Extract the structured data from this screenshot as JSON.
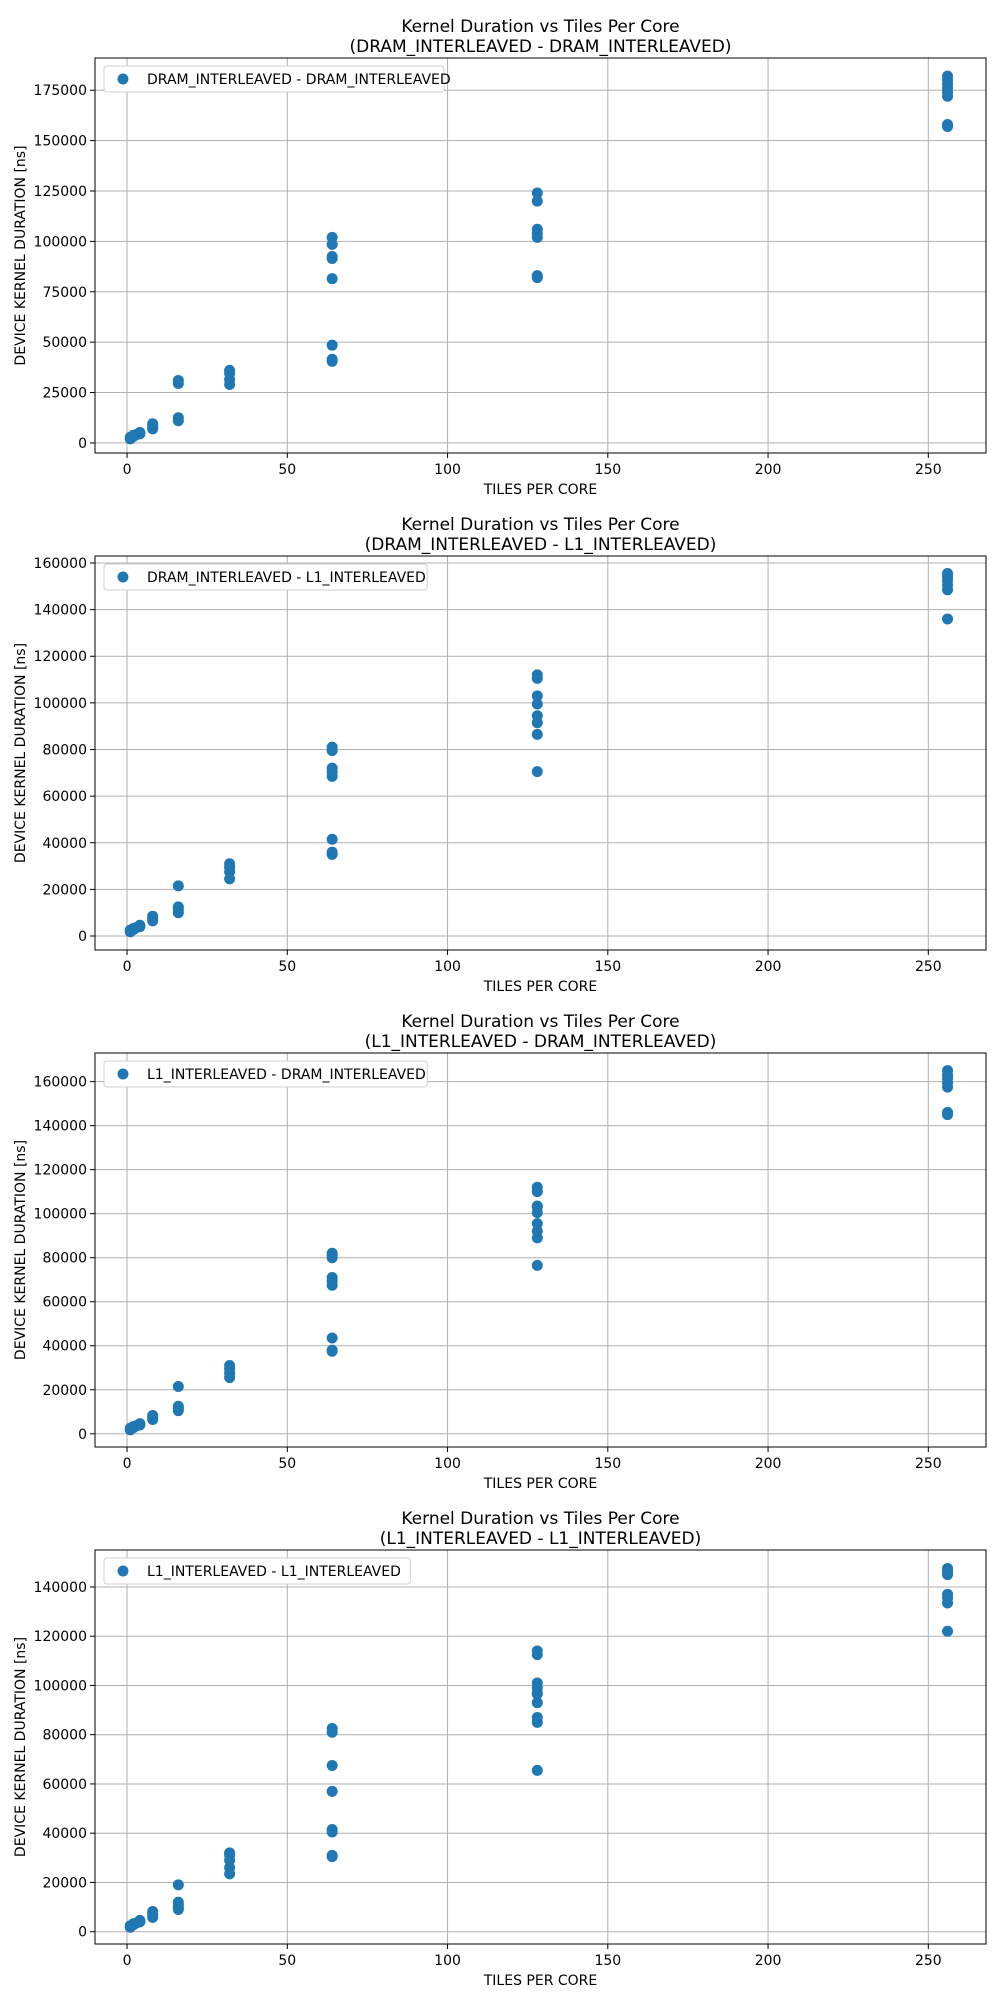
{
  "colors": {
    "series": "#1f77b4",
    "grid": "#b0b0b0"
  },
  "chart_data": [
    {
      "type": "scatter",
      "title": "Kernel Duration vs Tiles Per Core",
      "subtitle": "(DRAM_INTERLEAVED - DRAM_INTERLEAVED)",
      "xlabel": "TILES PER CORE",
      "ylabel": "DEVICE KERNEL DURATION [ns]",
      "xlim": [
        -10,
        268
      ],
      "ylim": [
        -5000,
        191000
      ],
      "xticks": [
        0,
        50,
        100,
        150,
        200,
        250
      ],
      "yticks": [
        0,
        25000,
        50000,
        75000,
        100000,
        125000,
        150000,
        175000
      ],
      "grid": true,
      "legend_position": "top-left",
      "series": [
        {
          "name": "DRAM_INTERLEAVED - DRAM_INTERLEAVED",
          "x": [
            1,
            1,
            2,
            2,
            3,
            4,
            4,
            8,
            8,
            8,
            16,
            16,
            16,
            16,
            32,
            32,
            32,
            32,
            64,
            64,
            64,
            64,
            64,
            64,
            64,
            64,
            128,
            128,
            128,
            128,
            128,
            128,
            128,
            256,
            256,
            256,
            256,
            256,
            256,
            256,
            256
          ],
          "y": [
            2000,
            2800,
            3200,
            3800,
            4200,
            4500,
            5200,
            7000,
            8500,
            9500,
            11000,
            12500,
            29500,
            31000,
            29000,
            31500,
            34500,
            36000,
            40500,
            41500,
            48500,
            81500,
            91500,
            92500,
            98500,
            102000,
            82000,
            83000,
            102000,
            104000,
            106000,
            120000,
            124000,
            157000,
            158000,
            172000,
            174000,
            176000,
            178000,
            180000,
            182000
          ]
        }
      ]
    },
    {
      "type": "scatter",
      "title": "Kernel Duration vs Tiles Per Core",
      "subtitle": "(DRAM_INTERLEAVED - L1_INTERLEAVED)",
      "xlabel": "TILES PER CORE",
      "ylabel": "DEVICE KERNEL DURATION [ns]",
      "xlim": [
        -10,
        268
      ],
      "ylim": [
        -6000,
        163000
      ],
      "xticks": [
        0,
        50,
        100,
        150,
        200,
        250
      ],
      "yticks": [
        0,
        20000,
        40000,
        60000,
        80000,
        100000,
        120000,
        140000,
        160000
      ],
      "grid": true,
      "legend_position": "top-left",
      "series": [
        {
          "name": "DRAM_INTERLEAVED - L1_INTERLEAVED",
          "x": [
            1,
            1,
            2,
            2,
            3,
            4,
            4,
            8,
            8,
            8,
            16,
            16,
            16,
            16,
            32,
            32,
            32,
            32,
            64,
            64,
            64,
            64,
            64,
            64,
            64,
            64,
            128,
            128,
            128,
            128,
            128,
            128,
            128,
            128,
            256,
            256,
            256,
            256,
            256,
            256
          ],
          "y": [
            1800,
            2500,
            2800,
            3300,
            3700,
            4000,
            4600,
            6500,
            7500,
            8500,
            10000,
            11500,
            12500,
            21500,
            24500,
            27500,
            29500,
            31000,
            35000,
            36000,
            41500,
            68500,
            70500,
            72000,
            79500,
            81000,
            70500,
            86500,
            91500,
            94500,
            99500,
            103000,
            110500,
            112000,
            136000,
            148500,
            150500,
            152500,
            154000,
            155500
          ]
        }
      ]
    },
    {
      "type": "scatter",
      "title": "Kernel Duration vs Tiles Per Core",
      "subtitle": "(L1_INTERLEAVED - DRAM_INTERLEAVED)",
      "xlabel": "TILES PER CORE",
      "ylabel": "DEVICE KERNEL DURATION [ns]",
      "xlim": [
        -10,
        268
      ],
      "ylim": [
        -6000,
        173000
      ],
      "xticks": [
        0,
        50,
        100,
        150,
        200,
        250
      ],
      "yticks": [
        0,
        20000,
        40000,
        60000,
        80000,
        100000,
        120000,
        140000,
        160000
      ],
      "grid": true,
      "legend_position": "top-left",
      "series": [
        {
          "name": "L1_INTERLEAVED - DRAM_INTERLEAVED",
          "x": [
            1,
            1,
            2,
            2,
            3,
            4,
            4,
            8,
            8,
            8,
            16,
            16,
            16,
            16,
            32,
            32,
            32,
            32,
            64,
            64,
            64,
            64,
            64,
            64,
            64,
            64,
            64,
            128,
            128,
            128,
            128,
            128,
            128,
            128,
            128,
            128,
            256,
            256,
            256,
            256,
            256,
            256,
            256
          ],
          "y": [
            1800,
            2500,
            2800,
            3300,
            3700,
            4000,
            4600,
            6500,
            7500,
            8300,
            10500,
            11500,
            12500,
            21500,
            25500,
            27500,
            29500,
            31000,
            37500,
            38000,
            43500,
            67500,
            69500,
            71000,
            80000,
            82000,
            81000,
            76500,
            89000,
            92000,
            95500,
            100500,
            103000,
            110000,
            112000,
            103500,
            145000,
            146000,
            157500,
            159500,
            161500,
            163000,
            165000
          ]
        }
      ]
    },
    {
      "type": "scatter",
      "title": "Kernel Duration vs Tiles Per Core",
      "subtitle": "(L1_INTERLEAVED - L1_INTERLEAVED)",
      "xlabel": "TILES PER CORE",
      "ylabel": "DEVICE KERNEL DURATION [ns]",
      "xlim": [
        -10,
        268
      ],
      "ylim": [
        -5000,
        155000
      ],
      "xticks": [
        0,
        50,
        100,
        150,
        200,
        250
      ],
      "yticks": [
        0,
        20000,
        40000,
        60000,
        80000,
        100000,
        120000,
        140000
      ],
      "grid": true,
      "legend_position": "top-left",
      "series": [
        {
          "name": "L1_INTERLEAVED - L1_INTERLEAVED",
          "x": [
            1,
            1,
            2,
            2,
            3,
            4,
            4,
            8,
            8,
            8,
            16,
            16,
            16,
            16,
            16,
            32,
            32,
            32,
            32,
            32,
            64,
            64,
            64,
            64,
            64,
            64,
            64,
            64,
            128,
            128,
            128,
            128,
            128,
            128,
            128,
            128,
            128,
            128,
            256,
            256,
            256,
            256,
            256,
            256,
            256
          ],
          "y": [
            1800,
            2400,
            2800,
            3200,
            3600,
            4000,
            4600,
            5800,
            7000,
            8200,
            9000,
            10000,
            11000,
            12000,
            19000,
            23500,
            26000,
            29000,
            31000,
            32000,
            30500,
            31000,
            40500,
            41500,
            57000,
            67500,
            81000,
            82500,
            65500,
            85000,
            87000,
            93000,
            96500,
            99000,
            101000,
            112500,
            114000,
            97000,
            122000,
            133500,
            135500,
            137000,
            145000,
            146500,
            147500
          ]
        }
      ]
    }
  ]
}
